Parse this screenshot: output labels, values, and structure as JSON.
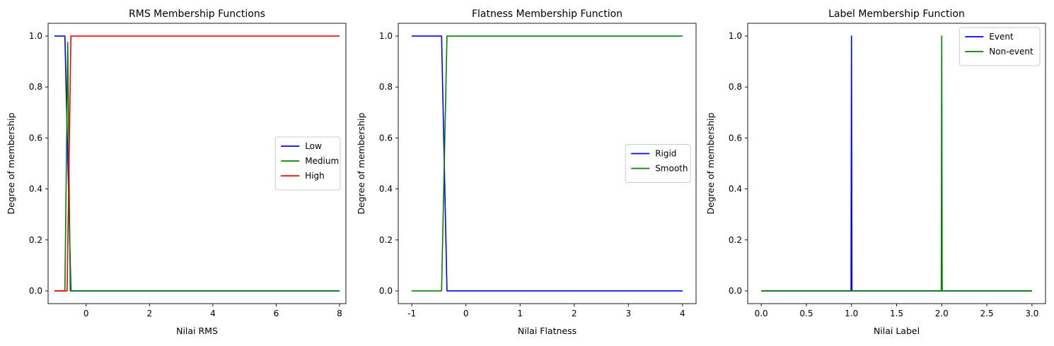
{
  "chart_data": [
    {
      "type": "line",
      "title": "RMS Membership Functions",
      "xlabel": "Nilai RMS",
      "ylabel": "Degree of membership",
      "xlim": [
        -1.2,
        8.2
      ],
      "ylim": [
        -0.05,
        1.05
      ],
      "xticks": [
        0,
        2,
        4,
        6,
        8
      ],
      "yticks": [
        0.0,
        0.2,
        0.4,
        0.6,
        0.8,
        1.0
      ],
      "legend_position": "center-right",
      "series": [
        {
          "name": "Low",
          "color": "#0000ff",
          "x": [
            -1.0,
            -0.67,
            -0.48,
            8.0
          ],
          "y": [
            1.0,
            1.0,
            0.0,
            0.0
          ]
        },
        {
          "name": "Medium",
          "color": "#008000",
          "x": [
            -1.0,
            -0.67,
            -0.58,
            -0.5,
            8.0
          ],
          "y": [
            0.0,
            0.0,
            0.975,
            0.0,
            0.0
          ]
        },
        {
          "name": "High",
          "color": "#ff0000",
          "x": [
            -1.0,
            -0.6,
            -0.48,
            8.0
          ],
          "y": [
            0.0,
            0.0,
            1.0,
            1.0
          ]
        }
      ]
    },
    {
      "type": "line",
      "title": "Flatness Membership Function",
      "xlabel": "Nilai Flatness",
      "ylabel": "Degree of membership",
      "xlim": [
        -1.25,
        4.25
      ],
      "ylim": [
        -0.05,
        1.05
      ],
      "xticks": [
        -1,
        0,
        1,
        2,
        3,
        4
      ],
      "yticks": [
        0.0,
        0.2,
        0.4,
        0.6,
        0.8,
        1.0
      ],
      "legend_position": "center-right",
      "series": [
        {
          "name": "Rigid",
          "color": "#0000ff",
          "x": [
            -1.0,
            -0.45,
            -0.35,
            4.0
          ],
          "y": [
            1.0,
            1.0,
            0.0,
            0.0
          ]
        },
        {
          "name": "Smooth",
          "color": "#008000",
          "x": [
            -1.0,
            -0.45,
            -0.35,
            4.0
          ],
          "y": [
            0.0,
            0.0,
            1.0,
            1.0
          ]
        }
      ]
    },
    {
      "type": "line",
      "title": "Label Membership Function",
      "xlabel": "Nilai Label",
      "ylabel": "Degree of membership",
      "xlim": [
        -0.15,
        3.15
      ],
      "ylim": [
        -0.05,
        1.05
      ],
      "xticks": [
        0.0,
        0.5,
        1.0,
        1.5,
        2.0,
        2.5,
        3.0
      ],
      "yticks": [
        0.0,
        0.2,
        0.4,
        0.6,
        0.8,
        1.0
      ],
      "legend_position": "upper-right",
      "series": [
        {
          "name": "Event",
          "color": "#0000ff",
          "x": [
            0.0,
            0.995,
            1.0,
            1.005,
            3.0
          ],
          "y": [
            0.0,
            0.0,
            1.0,
            0.0,
            0.0
          ]
        },
        {
          "name": "Non-event",
          "color": "#008000",
          "x": [
            0.0,
            1.995,
            2.0,
            2.005,
            3.0
          ],
          "y": [
            0.0,
            0.0,
            1.0,
            0.0,
            0.0
          ]
        }
      ]
    }
  ]
}
